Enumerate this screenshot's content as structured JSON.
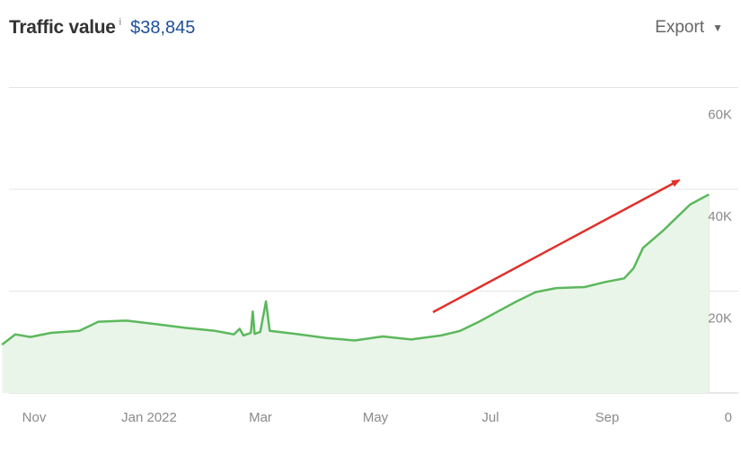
{
  "header": {
    "title": "Traffic value",
    "info_icon": "i",
    "value": "$38,845"
  },
  "export": {
    "label": "Export",
    "icon": "caret-down-icon"
  },
  "colors": {
    "line": "#5cb85c",
    "area": "#eaf5ea",
    "grid": "#e4e4e4",
    "arrow": "#e0302a"
  },
  "chart_data": {
    "type": "area",
    "title": "Traffic value",
    "x_ticks": [
      "Nov",
      "Jan 2022",
      "Mar",
      "May",
      "Jul",
      "Sep"
    ],
    "y_ticks": [
      "0",
      "20K",
      "40K",
      "60K"
    ],
    "ylim": [
      0,
      60000
    ],
    "grid": true,
    "annotation": "red upward trend arrow",
    "series": [
      {
        "values": [
          {
            "x": "2021-10-15",
            "y": 9500
          },
          {
            "x": "2021-10-22",
            "y": 11500
          },
          {
            "x": "2021-10-30",
            "y": 11000
          },
          {
            "x": "2021-11-10",
            "y": 11800
          },
          {
            "x": "2021-11-25",
            "y": 12200
          },
          {
            "x": "2021-12-05",
            "y": 14000
          },
          {
            "x": "2021-12-20",
            "y": 14200
          },
          {
            "x": "2022-01-05",
            "y": 13500
          },
          {
            "x": "2022-01-20",
            "y": 12800
          },
          {
            "x": "2022-02-05",
            "y": 12200
          },
          {
            "x": "2022-02-15",
            "y": 11500
          },
          {
            "x": "2022-02-18",
            "y": 12600
          },
          {
            "x": "2022-02-20",
            "y": 11300
          },
          {
            "x": "2022-02-24",
            "y": 11800
          },
          {
            "x": "2022-02-25",
            "y": 16000
          },
          {
            "x": "2022-02-26",
            "y": 11600
          },
          {
            "x": "2022-03-01",
            "y": 12000
          },
          {
            "x": "2022-03-04",
            "y": 18000
          },
          {
            "x": "2022-03-06",
            "y": 12200
          },
          {
            "x": "2022-03-20",
            "y": 11600
          },
          {
            "x": "2022-04-05",
            "y": 10800
          },
          {
            "x": "2022-04-20",
            "y": 10300
          },
          {
            "x": "2022-05-05",
            "y": 11100
          },
          {
            "x": "2022-05-20",
            "y": 10500
          },
          {
            "x": "2022-06-05",
            "y": 11300
          },
          {
            "x": "2022-06-15",
            "y": 12200
          },
          {
            "x": "2022-06-25",
            "y": 14000
          },
          {
            "x": "2022-07-05",
            "y": 16000
          },
          {
            "x": "2022-07-15",
            "y": 18000
          },
          {
            "x": "2022-07-25",
            "y": 19800
          },
          {
            "x": "2022-08-05",
            "y": 20600
          },
          {
            "x": "2022-08-20",
            "y": 20800
          },
          {
            "x": "2022-08-31",
            "y": 21800
          },
          {
            "x": "2022-09-10",
            "y": 22500
          },
          {
            "x": "2022-09-15",
            "y": 24500
          },
          {
            "x": "2022-09-20",
            "y": 28500
          },
          {
            "x": "2022-10-01",
            "y": 32000
          },
          {
            "x": "2022-10-15",
            "y": 37000
          },
          {
            "x": "2022-10-25",
            "y": 39000
          }
        ]
      }
    ]
  }
}
